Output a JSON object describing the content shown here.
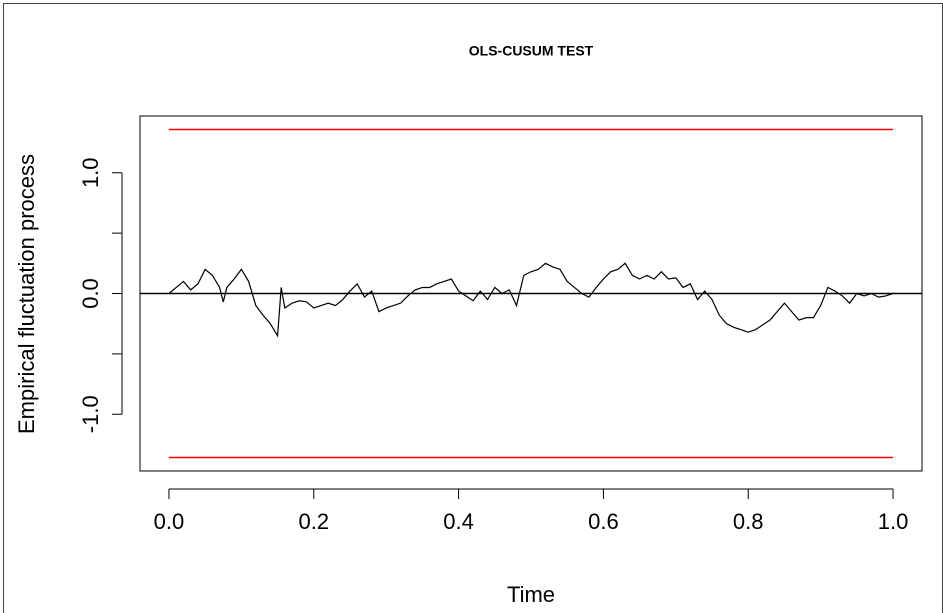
{
  "chart_data": {
    "type": "line",
    "title": "OLS-CUSUM TEST",
    "x_label": "Time",
    "y_label": "Empirical fluctuation process",
    "x": [
      0,
      0.01,
      0.02,
      0.03,
      0.04,
      0.05,
      0.06,
      0.07,
      0.075,
      0.08,
      0.09,
      0.1,
      0.11,
      0.12,
      0.13,
      0.14,
      0.15,
      0.155,
      0.16,
      0.17,
      0.18,
      0.19,
      0.2,
      0.21,
      0.22,
      0.23,
      0.24,
      0.25,
      0.26,
      0.27,
      0.28,
      0.29,
      0.3,
      0.31,
      0.32,
      0.33,
      0.34,
      0.35,
      0.36,
      0.37,
      0.38,
      0.39,
      0.4,
      0.41,
      0.42,
      0.43,
      0.44,
      0.45,
      0.46,
      0.47,
      0.48,
      0.49,
      0.5,
      0.51,
      0.52,
      0.53,
      0.54,
      0.55,
      0.56,
      0.57,
      0.58,
      0.59,
      0.6,
      0.61,
      0.62,
      0.63,
      0.64,
      0.65,
      0.66,
      0.67,
      0.68,
      0.69,
      0.7,
      0.71,
      0.72,
      0.73,
      0.74,
      0.75,
      0.76,
      0.77,
      0.78,
      0.79,
      0.8,
      0.81,
      0.82,
      0.83,
      0.84,
      0.85,
      0.86,
      0.87,
      0.88,
      0.89,
      0.9,
      0.91,
      0.92,
      0.93,
      0.94,
      0.95,
      0.96,
      0.97,
      0.98,
      0.99,
      1.0
    ],
    "series": [
      {
        "color": "#000000",
        "values": [
          0,
          0.05,
          0.1,
          0.03,
          0.08,
          0.2,
          0.15,
          0.05,
          -0.07,
          0.05,
          0.12,
          0.2,
          0.1,
          -0.1,
          -0.18,
          -0.25,
          -0.35,
          0.05,
          -0.12,
          -0.08,
          -0.06,
          -0.07,
          -0.12,
          -0.1,
          -0.08,
          -0.1,
          -0.05,
          0.02,
          0.08,
          -0.03,
          0.02,
          -0.15,
          -0.12,
          -0.1,
          -0.08,
          -0.02,
          0.03,
          0.05,
          0.05,
          0.08,
          0.1,
          0.12,
          0.02,
          -0.02,
          -0.06,
          0.02,
          -0.05,
          0.05,
          0.0,
          0.03,
          -0.1,
          0.15,
          0.18,
          0.2,
          0.25,
          0.22,
          0.2,
          0.1,
          0.05,
          0.0,
          -0.03,
          0.05,
          0.12,
          0.18,
          0.2,
          0.25,
          0.15,
          0.12,
          0.15,
          0.12,
          0.18,
          0.12,
          0.13,
          0.05,
          0.08,
          -0.05,
          0.02,
          -0.05,
          -0.18,
          -0.25,
          -0.28,
          -0.3,
          -0.32,
          -0.3,
          -0.26,
          -0.22,
          -0.15,
          -0.08,
          -0.15,
          -0.22,
          -0.2,
          -0.2,
          -0.1,
          0.05,
          0.02,
          -0.02,
          -0.08,
          0.0,
          -0.02,
          0.0,
          -0.03,
          -0.02,
          0
        ]
      }
    ],
    "boundaries": [
      1.358,
      -1.358
    ],
    "boundary_color": "#ff0000",
    "reference_line": 0,
    "xlim": [
      -0.04,
      1.04
    ],
    "ylim": [
      -1.47,
      1.47
    ],
    "xticks": [
      {
        "value": 0,
        "label": "0.0"
      },
      0.2,
      0.4,
      0.6,
      0.8,
      {
        "value": 1,
        "label": "1.0"
      }
    ],
    "yticks": [
      {
        "value": -1,
        "label": "-1.0"
      },
      {
        "value": 0,
        "label": "0.0"
      },
      {
        "value": 1,
        "label": "1.0"
      }
    ],
    "yminor_ticks": [
      -0.5,
      0.5
    ]
  }
}
